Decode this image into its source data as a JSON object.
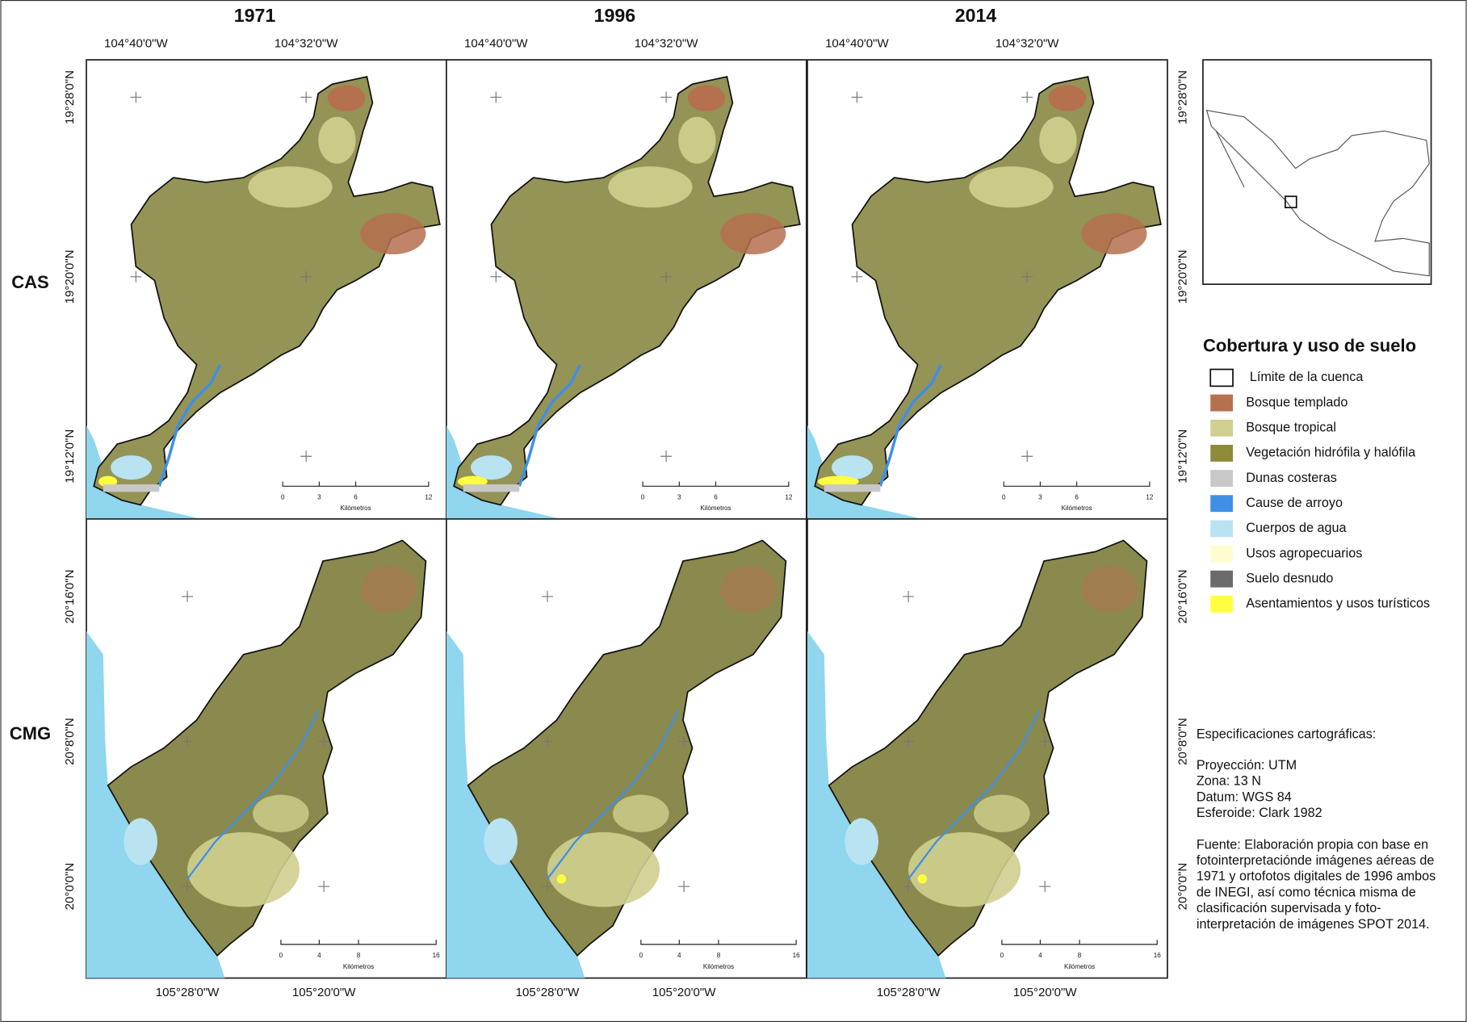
{
  "columns": [
    "1971",
    "1996",
    "2014"
  ],
  "rows": [
    "CAS",
    "CMG"
  ],
  "coordinates": {
    "cas_top": [
      "104°40'0\"W",
      "104°32'0\"W"
    ],
    "cas_lat": [
      "19°28'0\"N",
      "19°20'0\"N",
      "19°12'0\"N"
    ],
    "cmg_bottom": [
      "105°28'0\"W",
      "105°20'0\"W"
    ],
    "cmg_lat": [
      "20°16'0\"N",
      "20°8'0\"N",
      "20°0'0\"N"
    ]
  },
  "scale_bars": {
    "cas": {
      "ticks": [
        "0",
        "3",
        "6",
        "12"
      ],
      "unit": "Kilómetros"
    },
    "cmg": {
      "ticks": [
        "0",
        "4",
        "8",
        "16"
      ],
      "unit": "Kilómetros"
    }
  },
  "legend": {
    "title": "Cobertura y uso de suelo",
    "items": [
      {
        "label": "Límite de la cuenca",
        "color": "#ffffff"
      },
      {
        "label": "Bosque templado",
        "color": "#b5704e"
      },
      {
        "label": "Bosque tropical",
        "color": "#cfcf8f"
      },
      {
        "label": "Vegetación hidrófila y halófila",
        "color": "#8e8a3a"
      },
      {
        "label": "Dunas costeras",
        "color": "#c8c8c8"
      },
      {
        "label": "Cause de arroyo",
        "color": "#3f8fe8"
      },
      {
        "label": "Cuerpos de agua",
        "color": "#b9e3f1"
      },
      {
        "label": "Usos agropecuarios",
        "color": "#fffdd0"
      },
      {
        "label": "Suelo desnudo",
        "color": "#6b6b6b"
      },
      {
        "label": "Asentamientos y usos turísticos",
        "color": "#ffff40"
      }
    ]
  },
  "specifications": {
    "title": "Especificaciones cartográficas:",
    "lines": [
      "Proyección: UTM",
      "Zona: 13 N",
      "Datum: WGS 84",
      "Esferoide: Clark 1982"
    ],
    "source": [
      "Fuente: Elaboración propia con base en",
      " fotointerpretaciónde imágenes aéreas de",
      "1971 y ortofotos digitales de 1996 ambos",
      "de INEGI, así como técnica misma de",
      "clasificación supervisada y foto-",
      "interpretación de imágenes SPOT 2014."
    ]
  }
}
